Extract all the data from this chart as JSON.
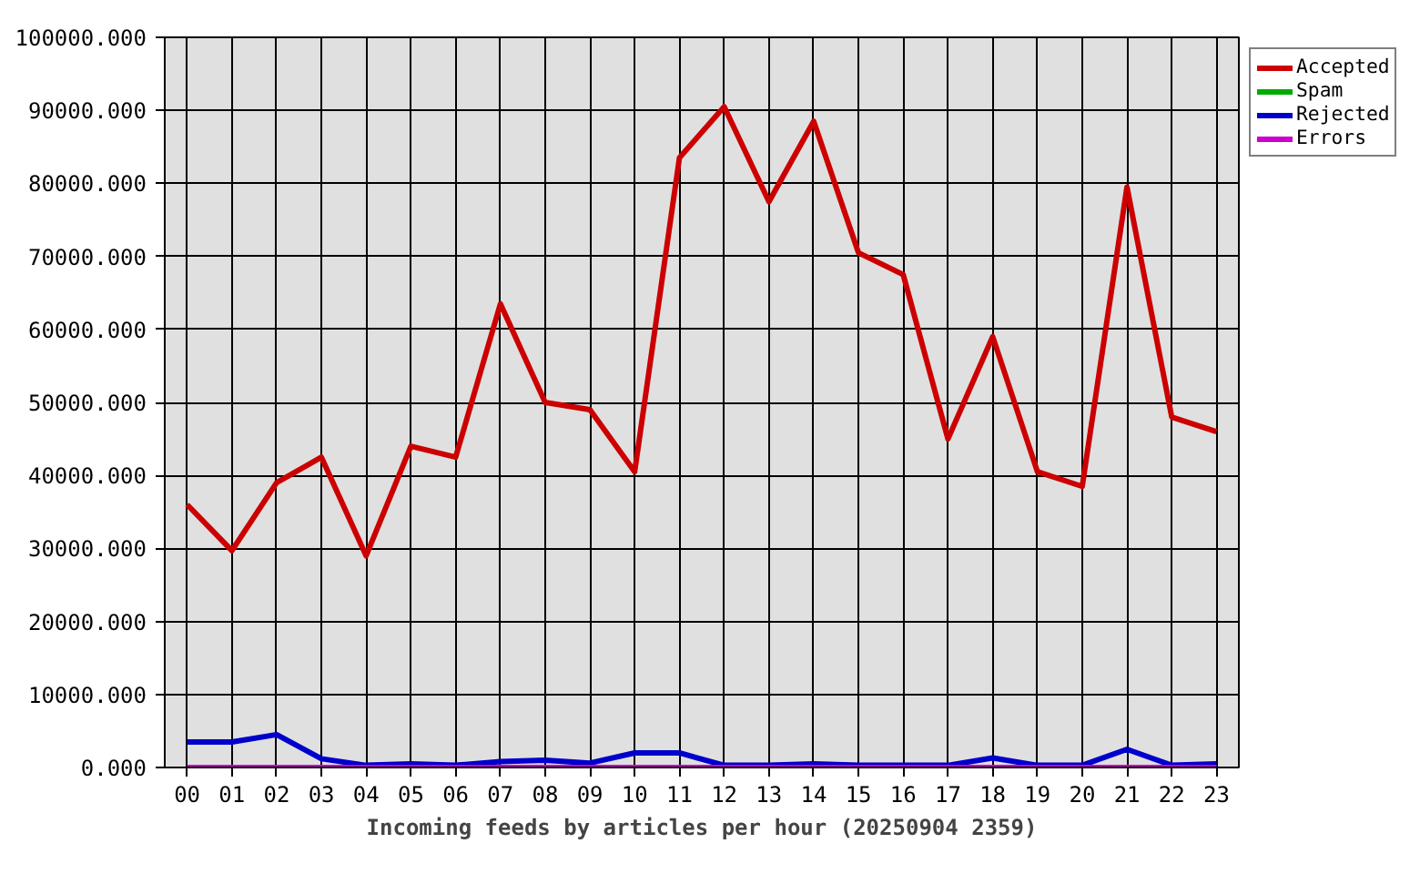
{
  "chart_data": {
    "type": "line",
    "xlabel": "Incoming feeds by articles per hour (20250904 2359)",
    "categories": [
      "00",
      "01",
      "02",
      "03",
      "04",
      "05",
      "06",
      "07",
      "08",
      "09",
      "10",
      "11",
      "12",
      "13",
      "14",
      "15",
      "16",
      "17",
      "18",
      "19",
      "20",
      "21",
      "22",
      "23"
    ],
    "series": [
      {
        "name": "Accepted",
        "color": "#cc0000",
        "values": [
          36000,
          29700,
          39000,
          42500,
          29000,
          44000,
          42500,
          63500,
          50000,
          49000,
          40500,
          83500,
          90500,
          77500,
          88500,
          70500,
          67500,
          45000,
          59000,
          40500,
          38500,
          79500,
          48000,
          46000
        ]
      },
      {
        "name": "Spam",
        "color": "#00aa00",
        "values": [
          null,
          null,
          null,
          null,
          null,
          null,
          null,
          null,
          null,
          null,
          null,
          null,
          null,
          null,
          null,
          null,
          null,
          null,
          null,
          null,
          null,
          null,
          null,
          null
        ]
      },
      {
        "name": "Rejected",
        "color": "#0000cc",
        "values": [
          3500,
          3500,
          4500,
          1200,
          300,
          500,
          300,
          800,
          1000,
          600,
          2000,
          2000,
          300,
          300,
          500,
          300,
          300,
          300,
          1300,
          300,
          300,
          2500,
          300,
          500
        ]
      },
      {
        "name": "Errors",
        "color": "#cc00cc",
        "values": [
          0,
          0,
          0,
          0,
          0,
          0,
          0,
          0,
          0,
          0,
          0,
          0,
          0,
          0,
          0,
          0,
          0,
          0,
          0,
          0,
          0,
          0,
          0,
          0
        ]
      }
    ],
    "ylim": [
      0,
      100000
    ],
    "yticks": [
      {
        "value": 0,
        "label": "0.000"
      },
      {
        "value": 10000,
        "label": "10000.000"
      },
      {
        "value": 20000,
        "label": "20000.000"
      },
      {
        "value": 30000,
        "label": "30000.000"
      },
      {
        "value": 40000,
        "label": "40000.000"
      },
      {
        "value": 50000,
        "label": "50000.000"
      },
      {
        "value": 60000,
        "label": "60000.000"
      },
      {
        "value": 70000,
        "label": "70000.000"
      },
      {
        "value": 80000,
        "label": "80000.000"
      },
      {
        "value": 90000,
        "label": "90000.000"
      },
      {
        "value": 100000,
        "label": "100000.000"
      }
    ],
    "grid": true,
    "legend": "top right",
    "marker": "none",
    "line_style": "solid"
  }
}
